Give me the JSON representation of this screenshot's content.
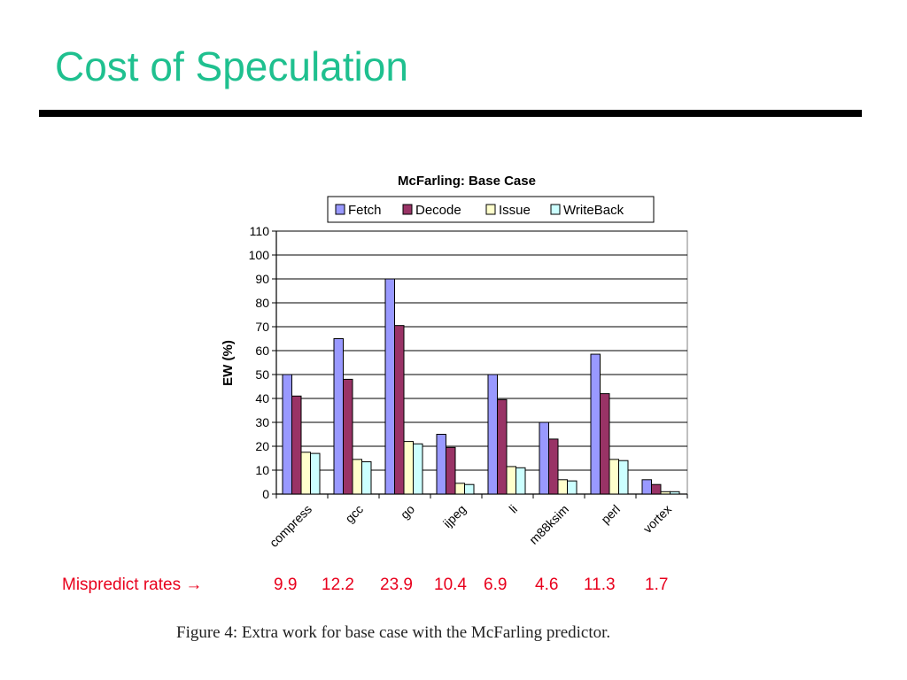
{
  "slide": {
    "title": "Cost of Speculation",
    "title_color": "#1fc08f"
  },
  "chart_data": {
    "type": "bar",
    "title": "McFarling: Base Case",
    "xlabel": "",
    "ylabel": "EW (%)",
    "ylim": [
      0,
      110
    ],
    "yticks": [
      0,
      10,
      20,
      30,
      40,
      50,
      60,
      70,
      80,
      90,
      100,
      110
    ],
    "grid": true,
    "legend_position": "top",
    "categories": [
      "compress",
      "gcc",
      "go",
      "ijpeg",
      "li",
      "m88ksim",
      "perl",
      "vortex"
    ],
    "series": [
      {
        "name": "Fetch",
        "color": "#9999ff",
        "values": [
          50,
          65,
          90,
          25,
          50,
          30,
          58.5,
          6
        ]
      },
      {
        "name": "Decode",
        "color": "#993366",
        "values": [
          41,
          48,
          70.5,
          19.5,
          39.5,
          23,
          42,
          4
        ]
      },
      {
        "name": "Issue",
        "color": "#ffffcc",
        "values": [
          17.5,
          14.5,
          22,
          4.5,
          11.5,
          6,
          14.5,
          1
        ]
      },
      {
        "name": "WriteBack",
        "color": "#ccffff",
        "values": [
          17,
          13.5,
          21,
          4,
          11,
          5.5,
          14,
          1
        ]
      }
    ]
  },
  "mispredict": {
    "label": "Mispredict rates →",
    "values": [
      "9.9",
      "12.2",
      "23.9",
      "10.4",
      "6.9",
      "4.6",
      "11.3",
      "1.7"
    ]
  },
  "caption": "Figure 4:  Extra work for base case with the McFarling predictor."
}
